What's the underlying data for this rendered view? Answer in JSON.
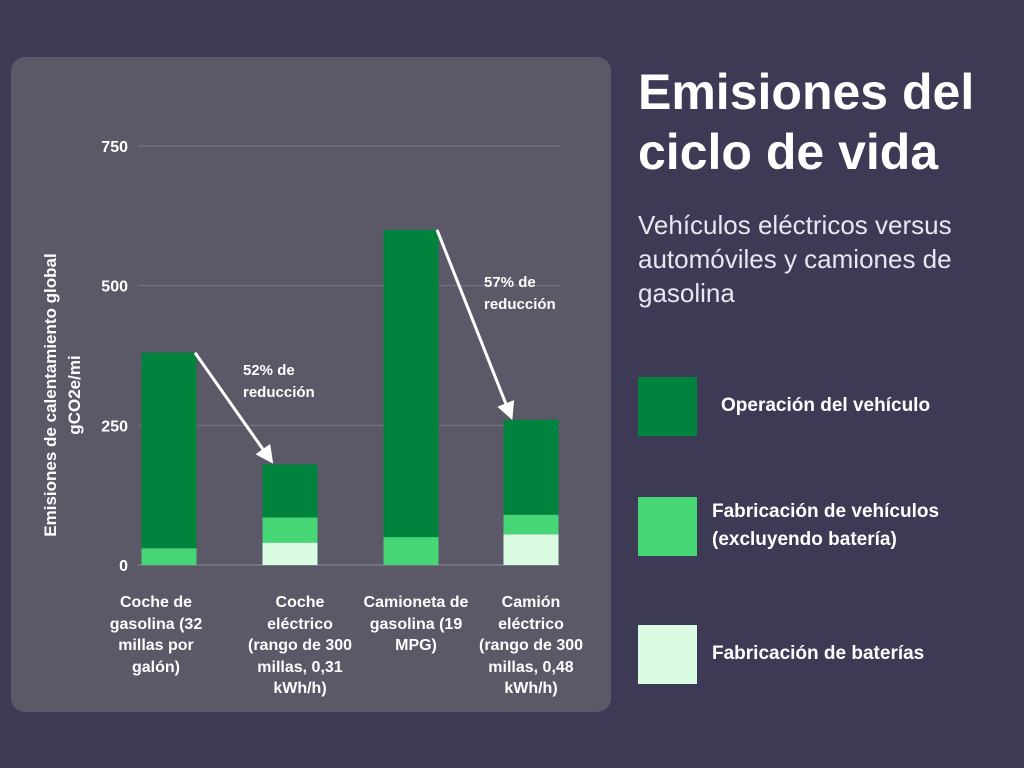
{
  "title": "Emisiones del ciclo de vida",
  "subtitle": "Vehículos eléctricos versus automóviles y camiones de gasolina",
  "colors": {
    "background": "#3d3a55",
    "panel": "#5b5868",
    "operation": "#00843d",
    "manufacturing": "#46d676",
    "battery": "#d9fce3"
  },
  "legend": [
    {
      "label": "Operación del vehículo",
      "color": "#00843d"
    },
    {
      "label": "Fabricación de vehículos (excluyendo batería)",
      "color": "#46d676"
    },
    {
      "label": "Fabricación de baterías",
      "color": "#d9fce3"
    }
  ],
  "annotations": [
    {
      "text": "52% de reducción",
      "from": 0,
      "to": 1
    },
    {
      "text": "57% de reducción",
      "from": 2,
      "to": 3
    }
  ],
  "chart_data": {
    "type": "bar",
    "stacked": true,
    "title": "",
    "xlabel": "",
    "ylabel": "Emisiones de calentamiento global gCO2e/mi",
    "ylim": [
      0,
      750
    ],
    "yticks": [
      0,
      250,
      500,
      750
    ],
    "grid": true,
    "legend_position": "right",
    "categories": [
      "Coche de gasolina (32 millas por galón)",
      "Coche eléctrico (rango de 300 millas, 0,31 kWh/h)",
      "Camioneta de gasolina (19 MPG)",
      "Camión eléctrico (rango de 300 millas, 0,48 kWh/h)"
    ],
    "series": [
      {
        "name": "Fabricación de baterías",
        "values": [
          0,
          40,
          0,
          55
        ]
      },
      {
        "name": "Fabricación de vehículos (excluyendo batería)",
        "values": [
          30,
          45,
          50,
          35
        ]
      },
      {
        "name": "Operación del vehículo",
        "values": [
          350,
          95,
          550,
          170
        ]
      }
    ]
  }
}
